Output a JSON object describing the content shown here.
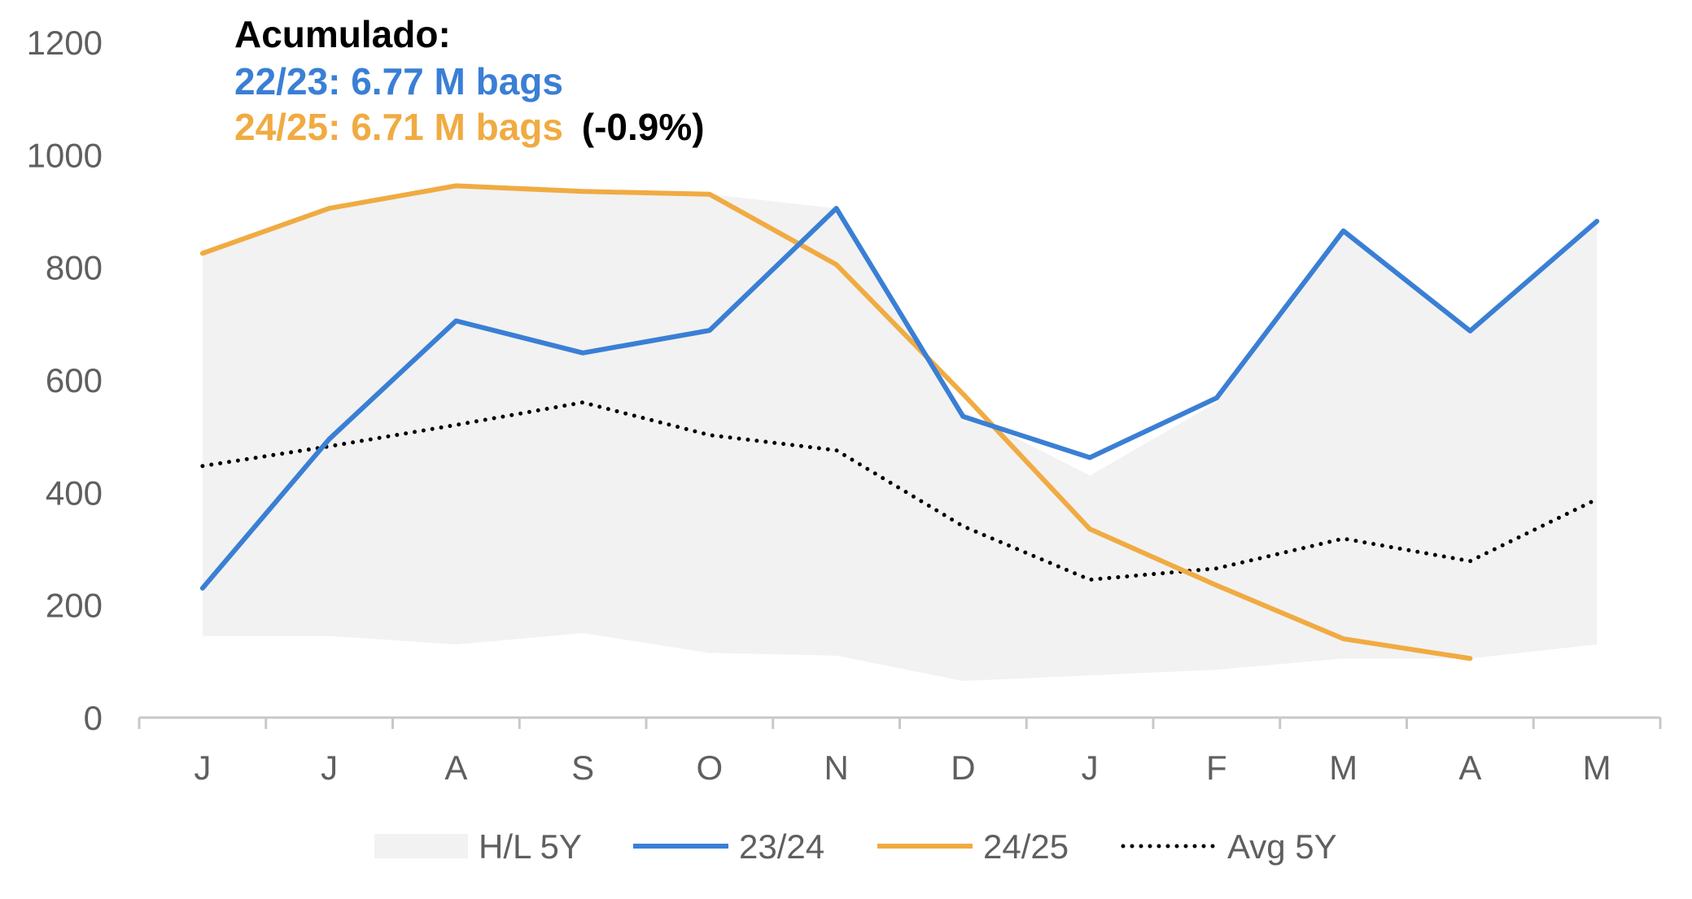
{
  "chart_data": {
    "type": "line",
    "categories": [
      "J",
      "J",
      "A",
      "S",
      "O",
      "N",
      "D",
      "J",
      "F",
      "M",
      "A",
      "M"
    ],
    "ylim": [
      0,
      1200
    ],
    "yticks": [
      "0",
      "200",
      "400",
      "600",
      "800",
      "1000",
      "1200"
    ],
    "grid": false,
    "legend_position": "bottom",
    "band": {
      "name": "H/L 5Y",
      "color": "#f2f2f2",
      "high": [
        825,
        905,
        945,
        935,
        930,
        905,
        545,
        430,
        560,
        865,
        685,
        880
      ],
      "low": [
        145,
        145,
        130,
        150,
        115,
        110,
        65,
        75,
        85,
        105,
        105,
        130
      ]
    },
    "series": [
      {
        "name": "23/24",
        "color": "#3a7fd5",
        "style": "solid",
        "values": [
          230,
          495,
          705,
          648,
          688,
          905,
          535,
          462,
          568,
          865,
          687,
          882
        ]
      },
      {
        "name": "24/25",
        "color": "#f0ab42",
        "style": "solid",
        "values": [
          825,
          905,
          945,
          935,
          930,
          805,
          575,
          335,
          235,
          140,
          105,
          null
        ]
      },
      {
        "name": "Avg 5Y",
        "color": "#000000",
        "style": "dotted",
        "values": [
          447,
          482,
          520,
          560,
          502,
          475,
          340,
          245,
          265,
          318,
          278,
          388
        ]
      }
    ],
    "annotation": {
      "title": "Acumulado:",
      "line1": "22/23: 6.77 M bags",
      "line2": "24/25: 6.71 M bags",
      "line2_suffix": "(-0.9%)"
    }
  }
}
